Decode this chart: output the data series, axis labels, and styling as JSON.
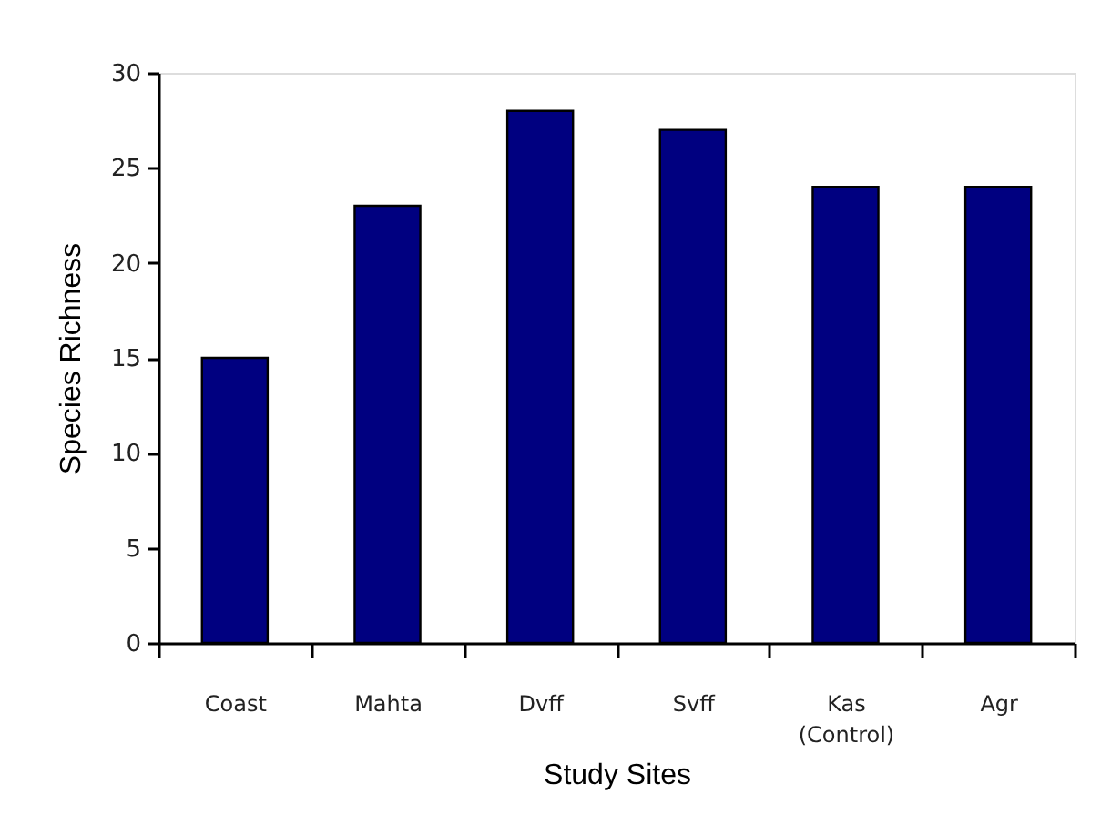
{
  "chart_data": {
    "type": "bar",
    "xlabel": "Study Sites",
    "ylabel": "Species Richness",
    "categories": [
      "Coast",
      "Mahta",
      "Dvff",
      "Svff",
      "Kas (Control)",
      "Agr"
    ],
    "values": [
      15,
      23,
      28,
      27,
      24,
      24
    ],
    "color": "#000080",
    "ylim": [
      0,
      30
    ],
    "yticks": [
      0,
      5,
      10,
      15,
      20,
      25,
      30
    ]
  }
}
